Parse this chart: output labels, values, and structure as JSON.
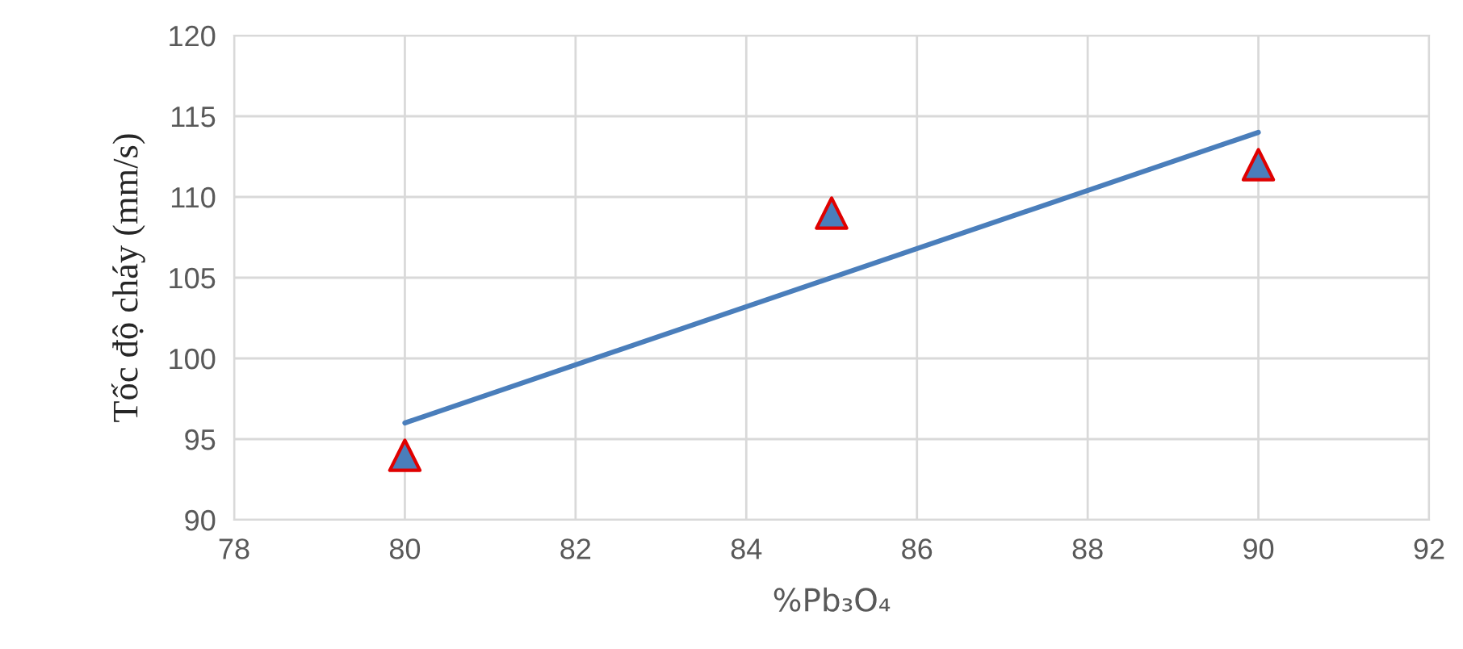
{
  "chart_data": {
    "type": "scatter",
    "xlabel": "%Pb₃O₄",
    "ylabel": "Tốc độ cháy (mm/s)",
    "series": [
      {
        "color": "#4a7ebb",
        "x": [
          80,
          85,
          90
        ],
        "values": [
          94,
          109,
          112
        ],
        "marker": "triangle"
      },
      {
        "type": "line",
        "color": "#4a7ebb",
        "x": [
          80,
          90
        ],
        "values": [
          96,
          114
        ],
        "line_style": "solid"
      }
    ],
    "xlim": [
      78,
      92
    ],
    "xticks": [
      78,
      80,
      82,
      84,
      86,
      88,
      90,
      92
    ],
    "ylim": [
      90,
      120
    ],
    "yticks": [
      90,
      95,
      100,
      105,
      110,
      115,
      120
    ],
    "grid": true
  }
}
